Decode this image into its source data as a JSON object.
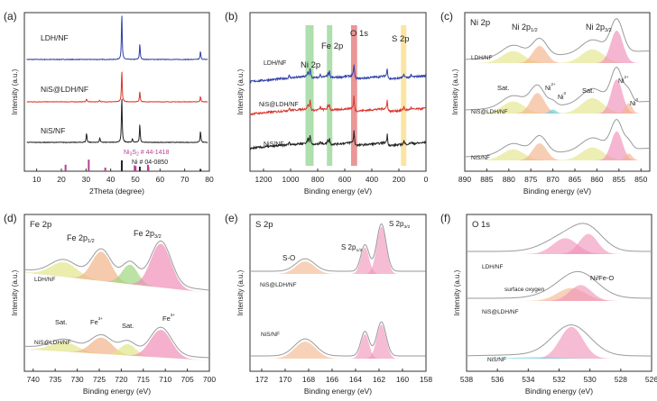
{
  "colors": {
    "black": "#222222",
    "red": "#d9342b",
    "blue": "#2e3fa6",
    "magenta": "#b0438f",
    "green_band": "#6cc56c",
    "red_band": "#d84040",
    "yellow_band": "#f5cf56",
    "peak_peach": "#f2b48a",
    "peak_pink": "#f08fb8",
    "peak_green": "#9fd67f",
    "peak_cyan": "#66d0e0",
    "peak_yellow": "#e3e58a",
    "envelope": "#9a9a9a"
  },
  "chart_data": [
    {
      "id": "a",
      "panel_label": "(a)",
      "type": "line",
      "xlabel": "2Theta (degree)",
      "ylabel": "Intensity (a.u.)",
      "xlim": [
        5,
        80
      ],
      "xticks": [
        "10",
        "20",
        "30",
        "40",
        "50",
        "60",
        "70",
        "80"
      ],
      "series": [
        {
          "name": "LDH/NF",
          "label": "LDH/NF",
          "color": "#2e3fa6",
          "offset": 2.2,
          "peaks": [
            [
              44.5,
              1.0
            ],
            [
              51.8,
              0.35
            ],
            [
              76.4,
              0.18
            ]
          ]
        },
        {
          "name": "NiS@LDH/NF",
          "label": "NiS@LDH/NF",
          "color": "#d9342b",
          "offset": 1.1,
          "peaks": [
            [
              44.5,
              0.9
            ],
            [
              51.8,
              0.3
            ],
            [
              76.4,
              0.15
            ],
            [
              30.2,
              0.08
            ],
            [
              35.5,
              0.05
            ]
          ]
        },
        {
          "name": "NiS/NF",
          "label": "NiS/NF",
          "color": "#222222",
          "offset": 0.0,
          "peaks": [
            [
              44.5,
              1.0
            ],
            [
              51.8,
              0.4
            ],
            [
              76.4,
              0.25
            ],
            [
              30.2,
              0.2
            ],
            [
              35.6,
              0.1
            ],
            [
              48.8,
              0.08
            ]
          ]
        }
      ],
      "ref_patterns": [
        {
          "name": "Ni3S2 # 44-1418",
          "label": "Ni",
          "sub1": "3",
          "mid": "S",
          "sub2": "2",
          "tail": " # 44-1418",
          "color": "#b0438f",
          "sticks": [
            [
              21.7,
              0.45
            ],
            [
              31.1,
              0.8
            ],
            [
              37.8,
              0.25
            ],
            [
              49.7,
              0.4
            ],
            [
              50.1,
              0.35
            ],
            [
              55.1,
              0.45
            ],
            [
              55.3,
              0.3
            ]
          ]
        },
        {
          "name": "Ni # 04-0850",
          "label": "Ni # 04-0850",
          "color": "#222222",
          "sticks": [
            [
              44.5,
              1.0
            ],
            [
              51.8,
              0.42
            ],
            [
              76.4,
              0.21
            ]
          ]
        }
      ]
    },
    {
      "id": "b",
      "panel_label": "(b)",
      "type": "line",
      "xlabel": "Binding energy (eV)",
      "ylabel": "Intensity (a.u.)",
      "xlim": [
        1300,
        0
      ],
      "xticks": [
        "1200",
        "1000",
        "800",
        "600",
        "400",
        "200",
        "0"
      ],
      "bands": [
        {
          "label": "Ni 2p",
          "center": 860,
          "width": 60,
          "color": "#6cc56c"
        },
        {
          "label": "Fe 2p",
          "center": 712,
          "width": 40,
          "color": "#6cc56c"
        },
        {
          "label": "O 1s",
          "center": 531,
          "width": 45,
          "color": "#d84040"
        },
        {
          "label": "S 2p",
          "center": 165,
          "width": 40,
          "color": "#f5cf56"
        }
      ],
      "series": [
        {
          "name": "LDH/NF",
          "label": "LDH/NF",
          "color": "#2e3fa6"
        },
        {
          "name": "NiS@LDH/NF",
          "label": "NiS@LDH/NF",
          "color": "#d9342b"
        },
        {
          "name": "NiS/NF",
          "label": "NiS/NF",
          "color": "#222222"
        }
      ]
    },
    {
      "id": "c",
      "panel_label": "(c)",
      "type": "line",
      "title": "Ni 2p",
      "xlabel": "Binding energy (eV)",
      "ylabel": "Intensity (a.u.)",
      "xlim": [
        890,
        848
      ],
      "xticks": [
        "890",
        "885",
        "880",
        "875",
        "870",
        "865",
        "860",
        "855",
        "850"
      ],
      "annotations": {
        "ni2p12": {
          "base": "Ni 2p",
          "sub": "1/2"
        },
        "ni2p32": {
          "base": "Ni 2p",
          "sub": "3/2"
        },
        "sat1": "Sat.",
        "sat2": "Sat.",
        "ni2plus_a": {
          "base": "Ni",
          "sup": "2+"
        },
        "ni0_a": {
          "base": "Ni",
          "sup": "0"
        },
        "ni2plus_b": {
          "base": "Ni",
          "sup": "2+"
        },
        "ni0_b": {
          "base": "Ni",
          "sup": "0"
        }
      },
      "series": [
        {
          "name": "LDH/NF",
          "label": "LDH/NF"
        },
        {
          "name": "NiS@LDH/NF",
          "label": "NiS@LDH/NF"
        },
        {
          "name": "NiS/NF",
          "label": "NiS/NF"
        }
      ]
    },
    {
      "id": "d",
      "panel_label": "(d)",
      "type": "line",
      "title": "Fe 2p",
      "xlabel": "Binding energy (eV)",
      "ylabel": "Intensity (a.u.)",
      "xlim": [
        742,
        700
      ],
      "xticks": [
        "740",
        "735",
        "730",
        "725",
        "720",
        "715",
        "710",
        "705",
        "700"
      ],
      "annotations": {
        "fe2p12": {
          "base": "Fe 2p",
          "sub": "1/2"
        },
        "fe2p32": {
          "base": "Fe 2p",
          "sub": "3/2"
        },
        "sat1": "Sat.",
        "sat2": "Sat.",
        "fe3plus_a": {
          "base": "Fe",
          "sup": "3+"
        },
        "fe3plus_b": {
          "base": "Fe",
          "sup": "3+"
        }
      },
      "series": [
        {
          "name": "LDH/NF",
          "label": "LDH/NF"
        },
        {
          "name": "NiS@LDH/NF",
          "label": "NiS@LDH/NF"
        }
      ]
    },
    {
      "id": "e",
      "panel_label": "(e)",
      "type": "line",
      "title": "S 2p",
      "xlabel": "Binding energy (eV)",
      "ylabel": "Intensity (a.u.)",
      "xlim": [
        173,
        158
      ],
      "xticks": [
        "172",
        "170",
        "168",
        "166",
        "164",
        "162",
        "160",
        "158"
      ],
      "annotations": {
        "so": "S-O",
        "s2p12": {
          "base": "S 2p",
          "sub": "1/2"
        },
        "s2p32": {
          "base": "S 2p",
          "sub": "3/2"
        }
      },
      "series": [
        {
          "name": "NiS@LDH/NF",
          "label": "NiS@LDH/NF"
        },
        {
          "name": "NiS/NF",
          "label": "NiS/NF"
        }
      ]
    },
    {
      "id": "f",
      "panel_label": "(f)",
      "type": "line",
      "title": "O 1s",
      "xlabel": "Binding energy (eV)",
      "ylabel": "Intensity (a.u.)",
      "xlim": [
        538,
        526
      ],
      "xticks": [
        "538",
        "536",
        "534",
        "532",
        "530",
        "528",
        "526"
      ],
      "annotations": {
        "surface": "surface oxygen",
        "nife": "Ni/Fe-O"
      },
      "series": [
        {
          "name": "LDH/NF",
          "label": "LDH/NF"
        },
        {
          "name": "NiS@LDH/NF",
          "label": "NiS@LDH/NF"
        },
        {
          "name": "NiS/NF",
          "label": "NiS/NF"
        }
      ]
    }
  ]
}
